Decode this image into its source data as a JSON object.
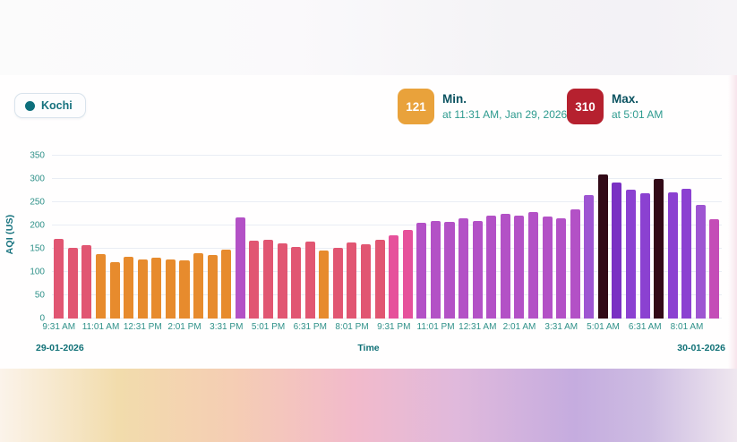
{
  "legend": {
    "city": "Kochi"
  },
  "stats": {
    "min": {
      "value": "121",
      "label": "Min.",
      "detail": "at 11:31 AM, Jan 29, 2026",
      "badge_color": "#e9a23b"
    },
    "max": {
      "value": "310",
      "label": "Max.",
      "detail": "at 5:01 AM",
      "badge_color": "#b6212f"
    }
  },
  "colors": {
    "tick_text": "#2f9189",
    "axis_bold_text": "#0f7076",
    "legend_dot": "#0d6e7b",
    "gridline": "#e9edf4"
  },
  "chart_data": {
    "type": "bar",
    "title": "",
    "ylabel": "AQI (US)",
    "xlabel": "Time",
    "date_left": "29-01-2026",
    "date_right": "30-01-2026",
    "ylim": [
      0,
      350
    ],
    "ytick_step": 50,
    "grid": true,
    "legend_position": "top-left",
    "x_tick_every": 3,
    "palette": {
      "orange": "#e78b2d",
      "rose": "#e15672",
      "magenta": "#e6519b",
      "orchid": "#b351c6",
      "medpurple": "#9e55d2",
      "violet": "#8b41d1",
      "deepviolet": "#7a30c3",
      "maroon": "#320a17",
      "magpurple": "#c44db7"
    },
    "points": [
      {
        "t": "9:31 AM",
        "v": 171,
        "c": "rose"
      },
      {
        "t": "10:01 AM",
        "v": 152,
        "c": "rose"
      },
      {
        "t": "10:31 AM",
        "v": 158,
        "c": "rose"
      },
      {
        "t": "11:01 AM",
        "v": 138,
        "c": "orange"
      },
      {
        "t": "11:31 AM",
        "v": 121,
        "c": "orange"
      },
      {
        "t": "12:01 PM",
        "v": 133,
        "c": "orange"
      },
      {
        "t": "12:31 PM",
        "v": 127,
        "c": "orange"
      },
      {
        "t": "1:01 PM",
        "v": 131,
        "c": "orange"
      },
      {
        "t": "1:31 PM",
        "v": 127,
        "c": "orange"
      },
      {
        "t": "2:01 PM",
        "v": 125,
        "c": "orange"
      },
      {
        "t": "2:31 PM",
        "v": 140,
        "c": "orange"
      },
      {
        "t": "3:01 PM",
        "v": 137,
        "c": "orange"
      },
      {
        "t": "3:31 PM",
        "v": 148,
        "c": "orange"
      },
      {
        "t": "4:01 PM",
        "v": 218,
        "c": "orchid"
      },
      {
        "t": "4:31 PM",
        "v": 167,
        "c": "rose"
      },
      {
        "t": "5:01 PM",
        "v": 169,
        "c": "rose"
      },
      {
        "t": "5:31 PM",
        "v": 162,
        "c": "rose"
      },
      {
        "t": "6:01 PM",
        "v": 154,
        "c": "rose"
      },
      {
        "t": "6:31 PM",
        "v": 165,
        "c": "rose"
      },
      {
        "t": "7:01 PM",
        "v": 146,
        "c": "orange"
      },
      {
        "t": "7:31 PM",
        "v": 152,
        "c": "rose"
      },
      {
        "t": "8:01 PM",
        "v": 163,
        "c": "rose"
      },
      {
        "t": "8:31 PM",
        "v": 159,
        "c": "rose"
      },
      {
        "t": "9:01 PM",
        "v": 170,
        "c": "rose"
      },
      {
        "t": "9:31 PM",
        "v": 179,
        "c": "magenta"
      },
      {
        "t": "10:01 PM",
        "v": 190,
        "c": "magenta"
      },
      {
        "t": "10:31 PM",
        "v": 205,
        "c": "orchid"
      },
      {
        "t": "11:01 PM",
        "v": 209,
        "c": "orchid"
      },
      {
        "t": "11:31 PM",
        "v": 207,
        "c": "orchid"
      },
      {
        "t": "12:01 AM",
        "v": 215,
        "c": "orchid"
      },
      {
        "t": "12:31 AM",
        "v": 209,
        "c": "orchid"
      },
      {
        "t": "1:01 AM",
        "v": 221,
        "c": "orchid"
      },
      {
        "t": "1:31 AM",
        "v": 225,
        "c": "orchid"
      },
      {
        "t": "2:01 AM",
        "v": 221,
        "c": "orchid"
      },
      {
        "t": "2:31 AM",
        "v": 229,
        "c": "orchid"
      },
      {
        "t": "3:01 AM",
        "v": 219,
        "c": "orchid"
      },
      {
        "t": "3:31 AM",
        "v": 215,
        "c": "orchid"
      },
      {
        "t": "4:01 AM",
        "v": 235,
        "c": "orchid"
      },
      {
        "t": "4:31 AM",
        "v": 265,
        "c": "medpurple"
      },
      {
        "t": "5:01 AM",
        "v": 310,
        "c": "maroon"
      },
      {
        "t": "5:31 AM",
        "v": 292,
        "c": "deepviolet"
      },
      {
        "t": "6:01 AM",
        "v": 277,
        "c": "violet"
      },
      {
        "t": "6:31 AM",
        "v": 269,
        "c": "violet"
      },
      {
        "t": "7:01 AM",
        "v": 300,
        "c": "maroon"
      },
      {
        "t": "7:31 AM",
        "v": 271,
        "c": "violet"
      },
      {
        "t": "8:01 AM",
        "v": 279,
        "c": "violet"
      },
      {
        "t": "8:31 AM",
        "v": 244,
        "c": "medpurple"
      },
      {
        "t": "9:01 AM",
        "v": 213,
        "c": "magpurple"
      }
    ]
  }
}
